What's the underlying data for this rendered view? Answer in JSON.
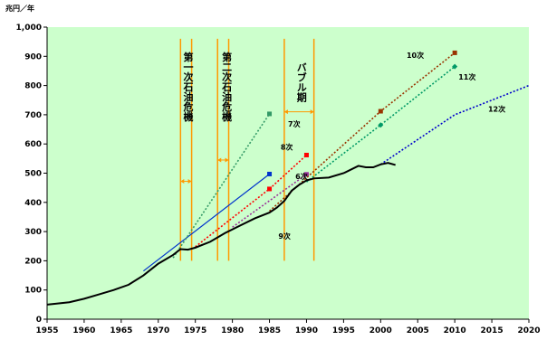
{
  "chart_data": {
    "type": "line",
    "ylabel": "兆円／年",
    "xlim": [
      1955,
      2020
    ],
    "ylim": [
      0,
      1000
    ],
    "x_ticks": [
      "1955",
      "1960",
      "1965",
      "1970",
      "1975",
      "1980",
      "1985",
      "1990",
      "1995",
      "2000",
      "2005",
      "2010",
      "2015",
      "2020"
    ],
    "y_ticks": [
      "0",
      "100",
      "200",
      "300",
      "400",
      "500",
      "600",
      "700",
      "800",
      "900",
      "1,000"
    ],
    "grid": false,
    "plot_background": "#ccffcc",
    "actual": {
      "color": "#000000",
      "points": [
        [
          1955,
          50
        ],
        [
          1958,
          58
        ],
        [
          1960,
          70
        ],
        [
          1962,
          85
        ],
        [
          1964,
          100
        ],
        [
          1966,
          118
        ],
        [
          1968,
          150
        ],
        [
          1970,
          190
        ],
        [
          1972,
          220
        ],
        [
          1973,
          240
        ],
        [
          1974,
          238
        ],
        [
          1975,
          245
        ],
        [
          1977,
          265
        ],
        [
          1979,
          295
        ],
        [
          1981,
          320
        ],
        [
          1983,
          345
        ],
        [
          1985,
          365
        ],
        [
          1986,
          382
        ],
        [
          1987,
          405
        ],
        [
          1988,
          440
        ],
        [
          1989,
          460
        ],
        [
          1990,
          475
        ],
        [
          1991,
          482
        ],
        [
          1993,
          485
        ],
        [
          1995,
          500
        ],
        [
          1997,
          525
        ],
        [
          1998,
          520
        ],
        [
          1999,
          520
        ],
        [
          2000,
          530
        ],
        [
          2001,
          535
        ],
        [
          2002,
          528
        ]
      ]
    },
    "series": [
      {
        "name": "6次",
        "color": "#0033cc",
        "style": "solid",
        "points": [
          [
            1968,
            165
          ],
          [
            1985,
            497
          ]
        ],
        "end_marker": "square"
      },
      {
        "name": "7次",
        "color": "#339966",
        "style": "dotted",
        "points": [
          [
            1972,
            210
          ],
          [
            1985,
            703
          ]
        ],
        "end_marker": "square"
      },
      {
        "name": "8次",
        "color": "#ff0000",
        "style": "dotted",
        "points": [
          [
            1975,
            248
          ],
          [
            1985,
            446
          ],
          [
            1990,
            562
          ]
        ],
        "end_marker": "square"
      },
      {
        "name": "9次",
        "color": "#993399",
        "style": "dotted",
        "points": [
          [
            1980,
            315
          ],
          [
            1990,
            496
          ]
        ],
        "end_marker": "square"
      },
      {
        "name": "10次",
        "color": "#993300",
        "style": "dotted",
        "points": [
          [
            1985,
            370
          ],
          [
            2000,
            712
          ],
          [
            2010,
            912
          ]
        ],
        "end_marker": "square"
      },
      {
        "name": "11次",
        "color": "#009966",
        "style": "dotted",
        "points": [
          [
            1990,
            470
          ],
          [
            2000,
            665
          ],
          [
            2010,
            865
          ]
        ],
        "end_marker": "diamond"
      },
      {
        "name": "12次",
        "color": "#0000cc",
        "style": "dotted",
        "points": [
          [
            2000,
            530
          ],
          [
            2010,
            700
          ],
          [
            2020,
            800
          ]
        ],
        "end_marker": "none"
      }
    ],
    "annotations": [
      {
        "text": "第一次石油危機",
        "x": 1974,
        "y": 915,
        "x_start": 1973,
        "x_end": 1974.5,
        "arrow_y": 472
      },
      {
        "text": "第二次石油危機",
        "x": 1979.2,
        "y": 915,
        "x_start": 1978,
        "x_end": 1979.5,
        "arrow_y": 545
      },
      {
        "text": "バブル期",
        "x": 1989.3,
        "y": 880,
        "x_start": 1987,
        "x_end": 1991,
        "arrow_y": 710
      }
    ]
  }
}
